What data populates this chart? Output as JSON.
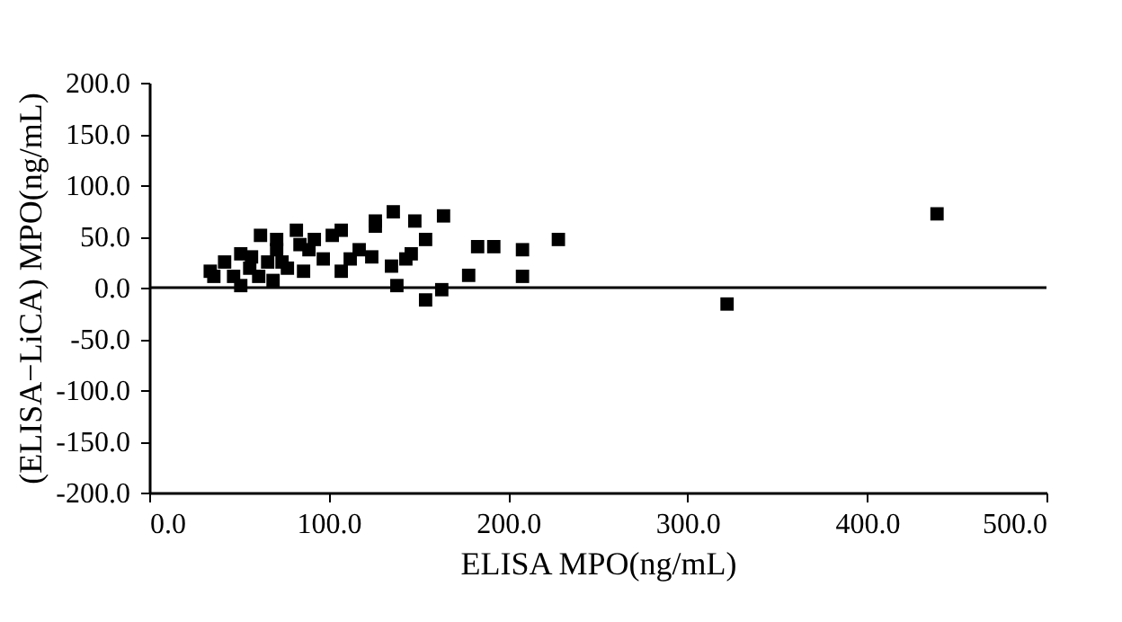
{
  "chart_data": {
    "type": "scatter",
    "xlabel": "ELISA MPO(ng/mL)",
    "ylabel": "(ELISA−LiCA) MPO(ng/mL)",
    "xlim": [
      0,
      500
    ],
    "xticks": [
      {
        "value": 0,
        "label": "0.0"
      },
      {
        "value": 100,
        "label": "100.0"
      },
      {
        "value": 200,
        "label": "200.0"
      },
      {
        "value": 300,
        "label": "300.0"
      },
      {
        "value": 400,
        "label": "400.0"
      },
      {
        "value": 500,
        "label": "500.0"
      }
    ],
    "ylim": [
      -200,
      200
    ],
    "yticks": [
      {
        "value": -200,
        "label": "-200.0"
      },
      {
        "value": -150,
        "label": "-150.0"
      },
      {
        "value": -100,
        "label": "-100.0"
      },
      {
        "value": -50,
        "label": "-50.0"
      },
      {
        "value": 0,
        "label": "0.0"
      },
      {
        "value": 50,
        "label": "50.0"
      },
      {
        "value": 100,
        "label": "100.0"
      },
      {
        "value": 150,
        "label": "150.0"
      },
      {
        "value": 200,
        "label": "200.0"
      }
    ],
    "grid": false,
    "marker": "square",
    "ref_lines": [
      {
        "axis": "y",
        "value": 0,
        "color": "#000000"
      }
    ],
    "series": [
      {
        "color": "#000000",
        "x": [
          34,
          36,
          42,
          47,
          51,
          51,
          56,
          57,
          61,
          62,
          66,
          71,
          71,
          69,
          74,
          77,
          82,
          84,
          86,
          89,
          92,
          97,
          102,
          107,
          107,
          112,
          117,
          124,
          126,
          126,
          135,
          136,
          138,
          143,
          146,
          148,
          154,
          154,
          163,
          164,
          178,
          183,
          192,
          208,
          208,
          228,
          322,
          439
        ],
        "values": [
          16,
          11,
          25,
          11,
          33,
          2,
          19,
          30,
          11,
          51,
          25,
          47,
          37,
          7,
          25,
          19,
          56,
          42,
          16,
          37,
          47,
          28,
          51,
          56,
          16,
          28,
          37,
          30,
          65,
          60,
          21,
          74,
          2,
          28,
          33,
          65,
          47,
          -12,
          -2,
          70,
          12,
          40,
          40,
          37,
          11,
          47,
          -16,
          72
        ]
      }
    ]
  }
}
